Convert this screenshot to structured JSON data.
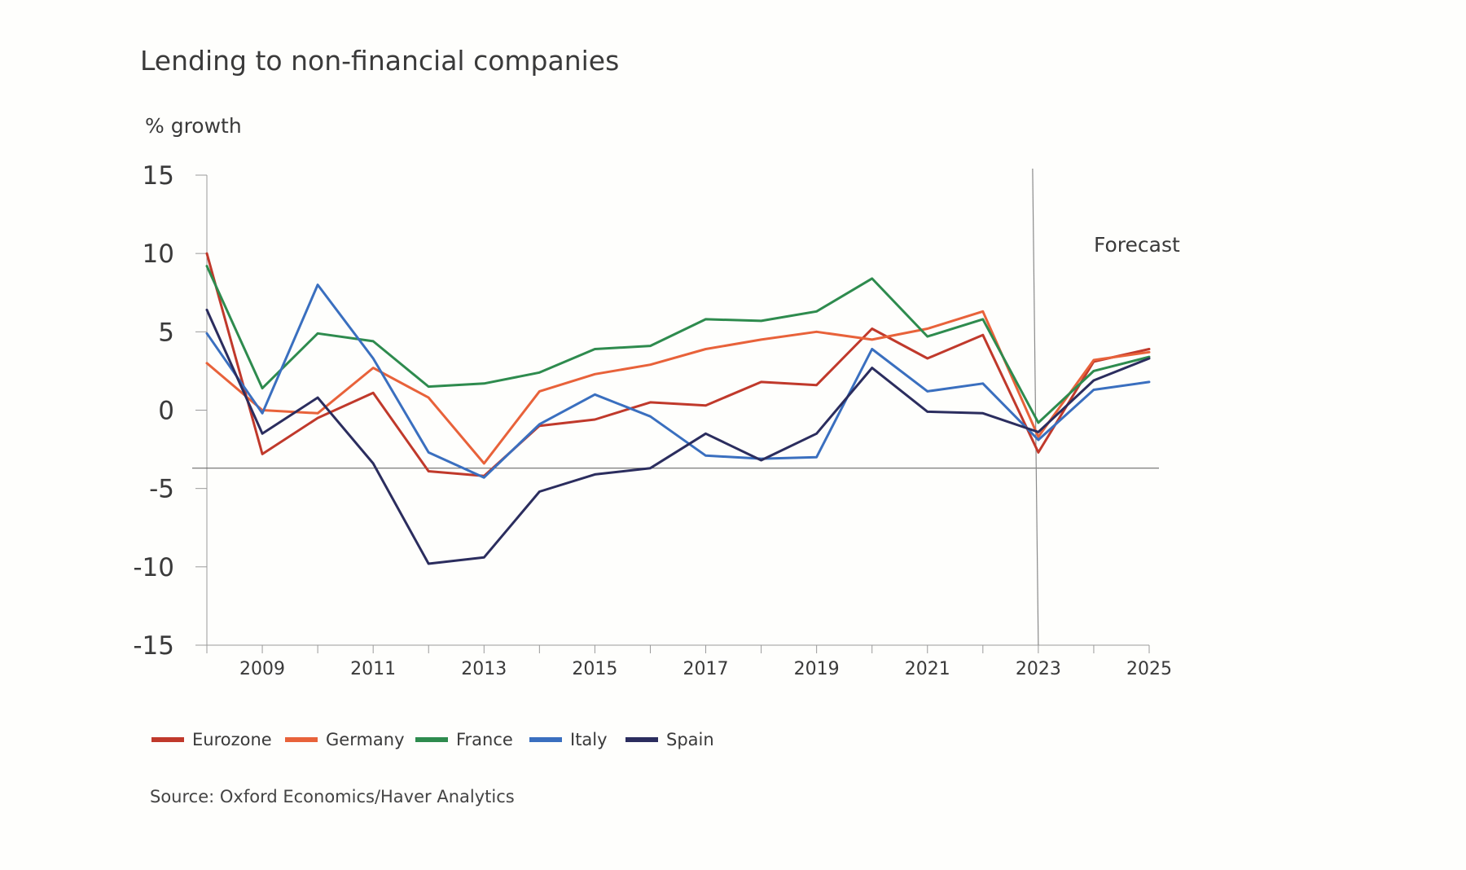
{
  "chart_data": {
    "type": "line",
    "title": "Lending to non-financial companies",
    "ylabel": "% growth",
    "xlabel": "",
    "ylim": [
      -15,
      15
    ],
    "yticks": [
      15,
      10,
      5,
      0,
      -5,
      -10,
      -15
    ],
    "xlim": [
      2008,
      2025
    ],
    "xtick_labels": [
      "2009",
      "2011",
      "2013",
      "2015",
      "2017",
      "2019",
      "2021",
      "2023",
      "2025"
    ],
    "x": [
      2008,
      2009,
      2010,
      2011,
      2012,
      2013,
      2014,
      2015,
      2016,
      2017,
      2018,
      2019,
      2020,
      2021,
      2022,
      2023,
      2024,
      2025
    ],
    "series": [
      {
        "name": "Eurozone",
        "color": "#c0392b",
        "values": [
          10,
          -2.8,
          -0.5,
          1.1,
          -3.9,
          -4.2,
          -1,
          -0.6,
          0.5,
          0.3,
          1.8,
          1.6,
          5.2,
          3.3,
          4.8,
          -2.7,
          3.1,
          3.9
        ]
      },
      {
        "name": "Germany",
        "color": "#e8623a",
        "values": [
          3,
          0,
          -0.2,
          2.7,
          0.8,
          -3.4,
          1.2,
          2.3,
          2.9,
          3.9,
          4.5,
          5,
          4.5,
          5.2,
          6.3,
          -1.7,
          3.2,
          3.7
        ]
      },
      {
        "name": "France",
        "color": "#2e8b4e",
        "values": [
          9.2,
          1.4,
          4.9,
          4.4,
          1.5,
          1.7,
          2.4,
          3.9,
          4.1,
          5.8,
          5.7,
          6.3,
          8.4,
          4.7,
          5.8,
          -0.8,
          2.5,
          3.4
        ]
      },
      {
        "name": "Italy",
        "color": "#3a6fbf",
        "values": [
          4.9,
          -0.2,
          8,
          3.3,
          -2.7,
          -4.3,
          -0.9,
          1,
          -0.4,
          -2.9,
          -3.1,
          -3,
          3.9,
          1.2,
          1.7,
          -1.9,
          1.3,
          1.8
        ]
      },
      {
        "name": "Spain",
        "color": "#2b2d5e",
        "values": [
          6.4,
          -1.5,
          0.8,
          -3.4,
          -9.8,
          -9.4,
          -5.2,
          -4.1,
          -3.7,
          -1.5,
          -3.2,
          -1.5,
          2.7,
          -0.1,
          -0.2,
          -1.4,
          1.9,
          3.3
        ]
      }
    ],
    "forecast_label": "Forecast",
    "forecast_start": 2023,
    "reference_line_y": -3.7,
    "grid": false,
    "legend_position": "bottom-left",
    "source": "Source: Oxford Economics/Haver Analytics"
  }
}
